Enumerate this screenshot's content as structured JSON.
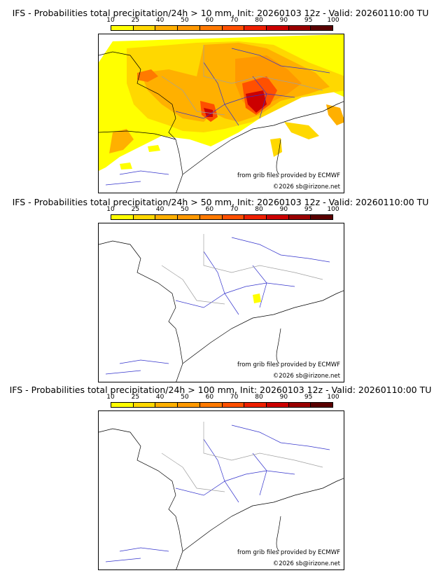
{
  "panels": [
    {
      "id": "p10",
      "title": "IFS - Probabilities total precipitation/24h > 10 mm, Init: 20260103 12z - Valid: 20260110:00 TU",
      "threshold_mm": 10,
      "source_credit": "from grib files provided by ECMWF",
      "copyright": "©2026 sb@irizone.net"
    },
    {
      "id": "p50",
      "title": "IFS - Probabilities total precipitation/24h > 50 mm, Init: 20260103 12z - Valid: 20260110:00 TU",
      "threshold_mm": 50,
      "source_credit": "from grib files provided by ECMWF",
      "copyright": "©2026 sb@irizone.net"
    },
    {
      "id": "p100",
      "title": "IFS - Probabilities total precipitation/24h > 100 mm, Init: 20260103 12z - Valid: 20260110:00 TU",
      "threshold_mm": 100,
      "source_credit": "from grib files provided by ECMWF",
      "copyright": "©2026 sb@irizone.net"
    }
  ],
  "scale": {
    "labels": [
      "10",
      "25",
      "40",
      "50",
      "60",
      "70",
      "80",
      "90",
      "95",
      "100"
    ],
    "colors": [
      "#ffff00",
      "#ffd800",
      "#ffb000",
      "#ff9900",
      "#ff7a00",
      "#ff5000",
      "#ee2000",
      "#cc0000",
      "#9a0000",
      "#5a0000"
    ]
  },
  "colors": {
    "coast": "#000000",
    "rivers": "#3333cc",
    "borders": "#a0a0a0"
  }
}
